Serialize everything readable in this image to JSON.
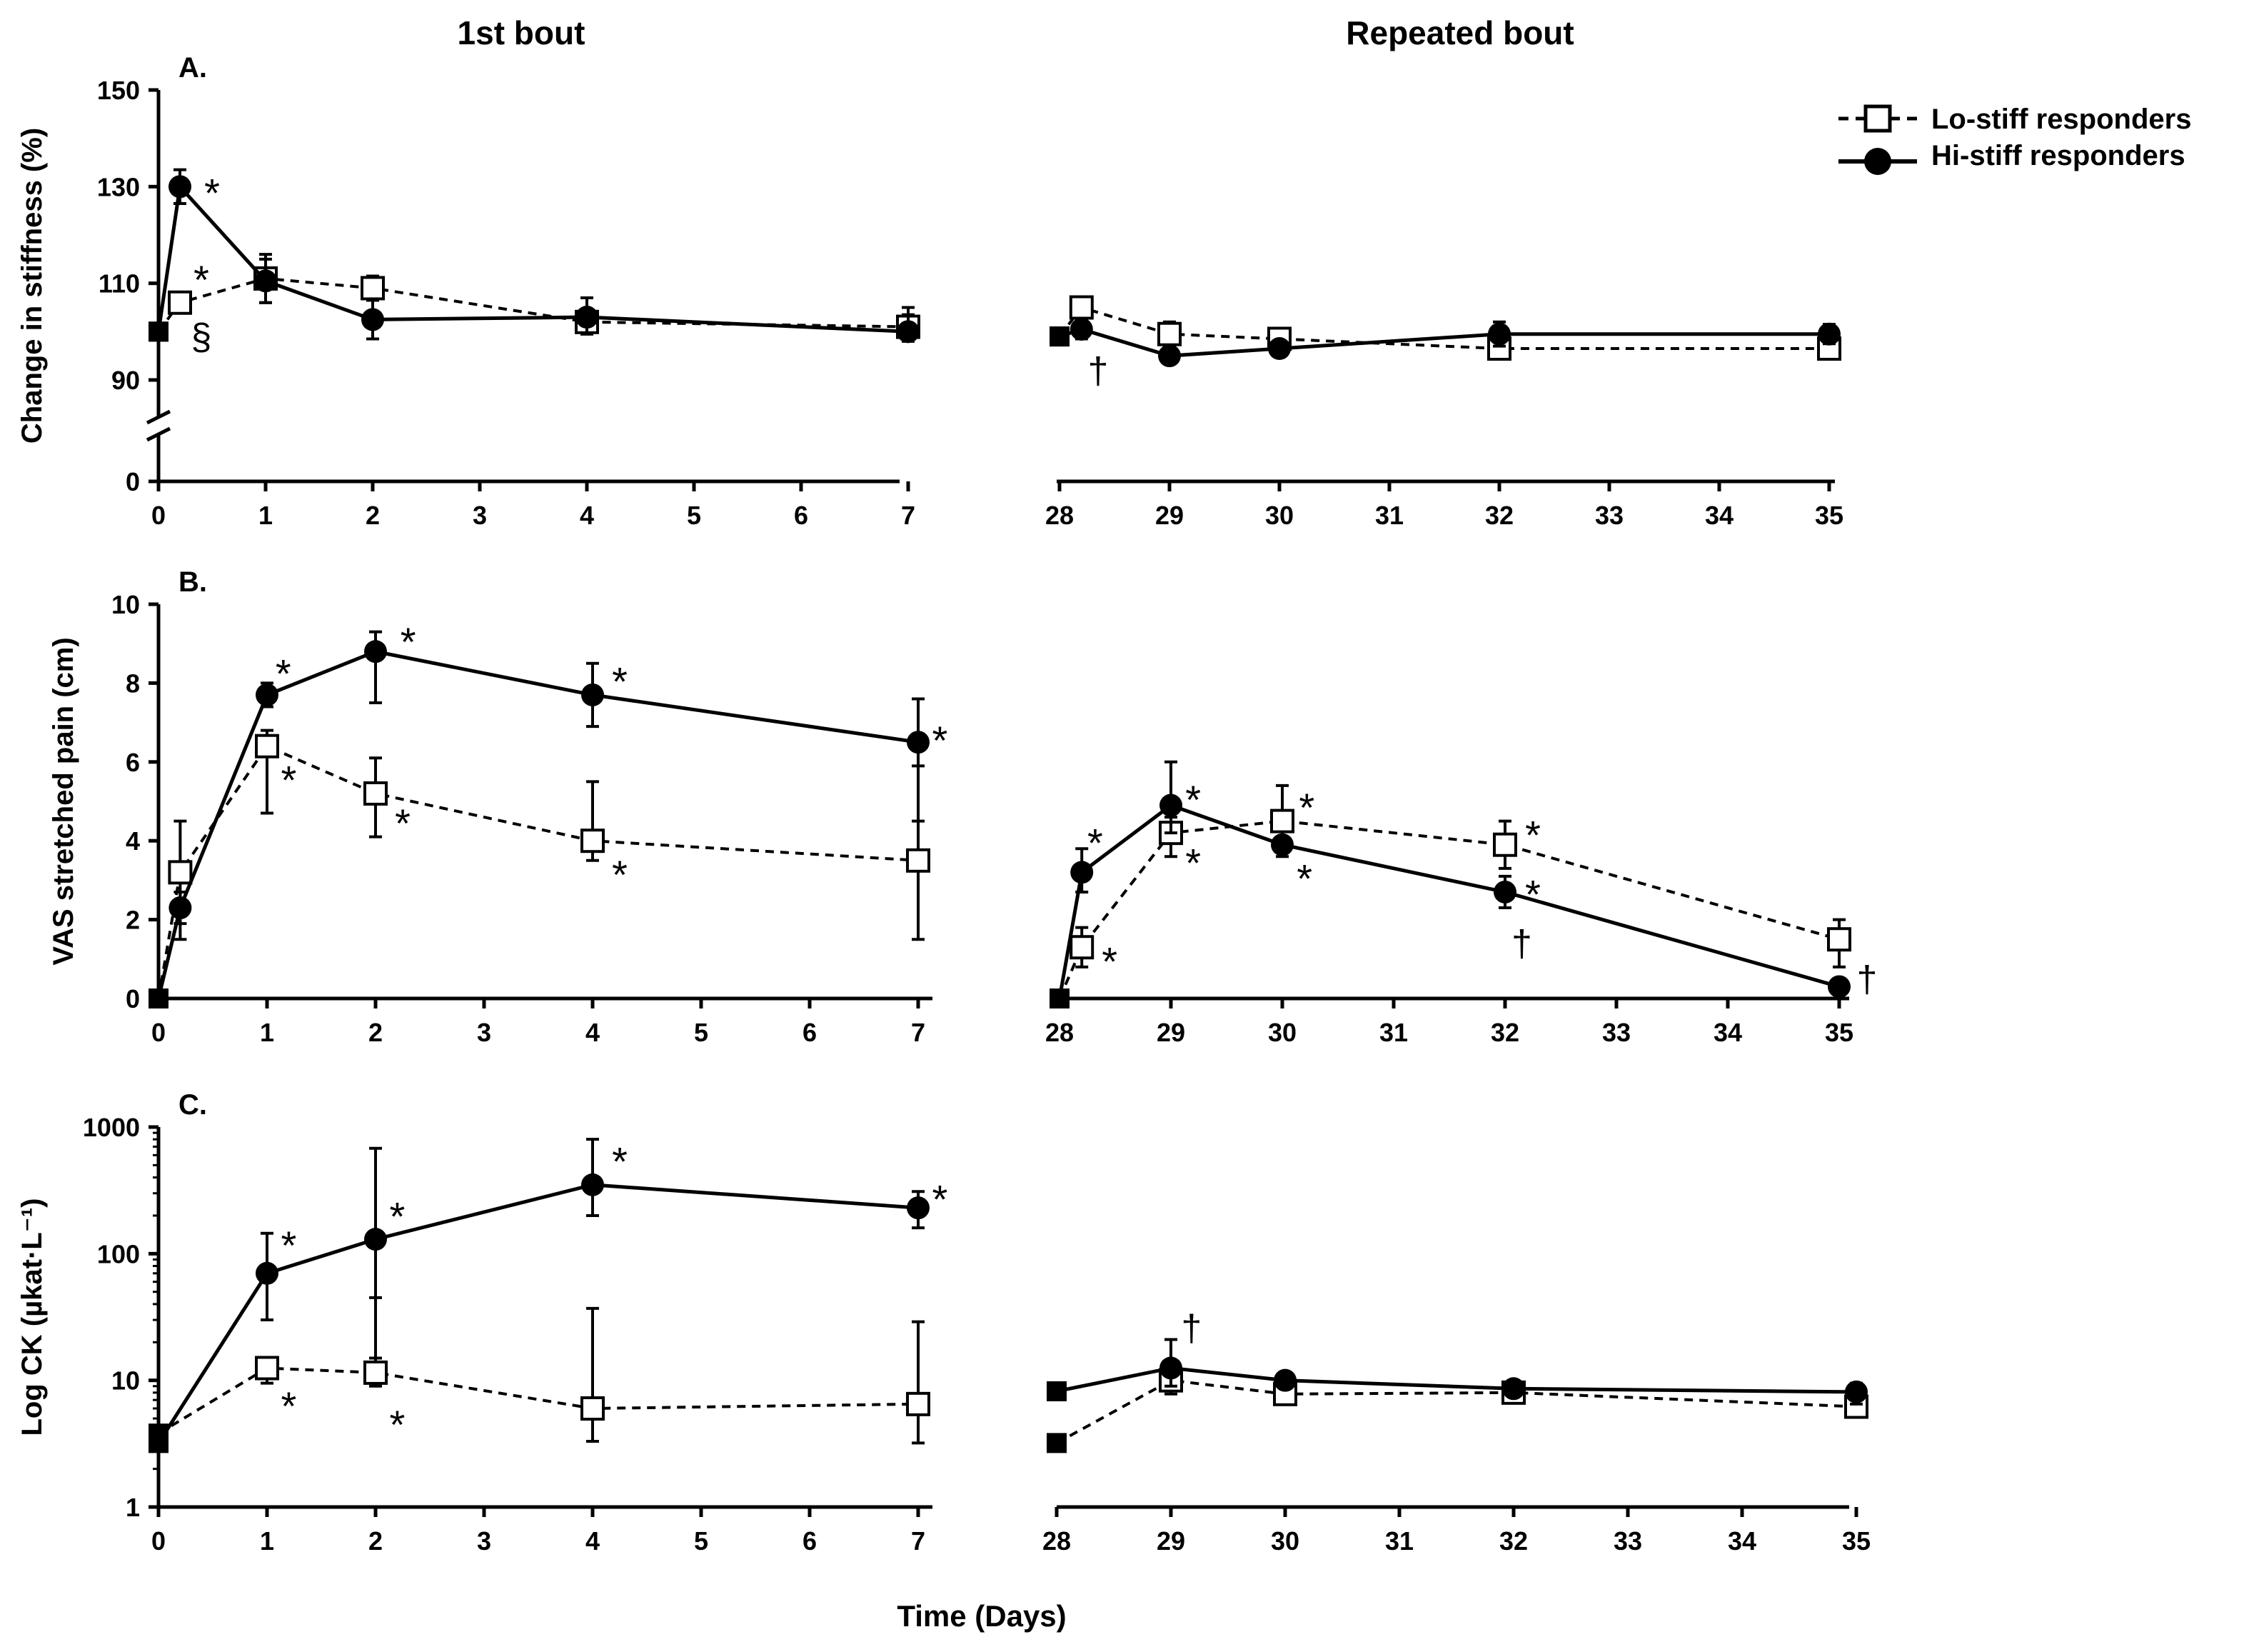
{
  "headers": {
    "first": "1st bout",
    "repeated": "Repeated bout"
  },
  "x_axis_label": "Time (Days)",
  "legend": {
    "lo": "Lo-stiff responders",
    "hi": "Hi-stiff responders"
  },
  "colors": {
    "line": "#000000",
    "annot": "#555555"
  },
  "first_ticks": [
    "0",
    "1",
    "2",
    "3",
    "4",
    "5",
    "6",
    "7"
  ],
  "repeat_ticks": [
    "28",
    "29",
    "30",
    "31",
    "32",
    "33",
    "34",
    "35"
  ],
  "chart_data": [
    {
      "id": "A",
      "type": "line",
      "panel_label": "A.",
      "ylabel": "Change in stiffness (%)",
      "scale": "linear",
      "ylim": [
        0,
        150
      ],
      "axis_break": true,
      "yticks": [
        0,
        90,
        110,
        130,
        150
      ],
      "ytick_labels": [
        "0",
        "90",
        "110",
        "130",
        "150"
      ],
      "series": [
        {
          "name": "Lo-stiff responders",
          "style": "dashed-open-square",
          "bout1": {
            "x": [
              0,
              0.2,
              1,
              2,
              4,
              7
            ],
            "y": [
              100,
              106,
              111,
              109,
              102,
              101
            ],
            "lo": [
              100,
              104.5,
              106,
              106.5,
              99.5,
              98.5
            ],
            "hi": [
              100,
              107.5,
              116,
              111.5,
              104.5,
              103.5
            ]
          },
          "bout2": {
            "x": [
              28,
              28.2,
              29,
              30,
              32,
              35
            ],
            "y": [
              99,
              105,
              99.5,
              98.5,
              96.5,
              96.5
            ],
            "lo": [
              99,
              103,
              97,
              97,
              94.5,
              94.5
            ],
            "hi": [
              99,
              107,
              102,
              100,
              98.5,
              98.5
            ]
          }
        },
        {
          "name": "Hi-stiff responders",
          "style": "solid-filled-circle",
          "bout1": {
            "x": [
              0,
              0.2,
              1,
              2,
              4,
              7
            ],
            "y": [
              100,
              130,
              110.5,
              102.5,
              103,
              100
            ],
            "lo": [
              100,
              126.5,
              106,
              98.5,
              99.5,
              98
            ],
            "hi": [
              100,
              133.5,
              115,
              106.5,
              107,
              105
            ]
          },
          "bout2": {
            "x": [
              28,
              28.2,
              29,
              30,
              32,
              35
            ],
            "y": [
              99,
              100.5,
              95,
              96.5,
              99.5,
              99.5
            ],
            "lo": [
              99,
              98.5,
              93.5,
              95,
              97,
              97.5
            ],
            "hi": [
              99,
              102.5,
              96.5,
              98,
              102,
              101.5
            ]
          }
        }
      ],
      "annotations": [
        {
          "text": "*",
          "x": 0.5,
          "y": 130
        },
        {
          "text": "*",
          "x": 0.4,
          "y": 112
        },
        {
          "text": "§",
          "x": 0.4,
          "y": 99
        },
        {
          "text": "†",
          "x": 28.35,
          "y": 92
        }
      ]
    },
    {
      "id": "B",
      "type": "line",
      "panel_label": "B.",
      "ylabel": "VAS stretched pain (cm)",
      "scale": "linear",
      "ylim": [
        0,
        10
      ],
      "yticks": [
        0,
        2,
        4,
        6,
        8,
        10
      ],
      "ytick_labels": [
        "0",
        "2",
        "4",
        "6",
        "8",
        "10"
      ],
      "series": [
        {
          "name": "Lo-stiff responders",
          "style": "dashed-open-square",
          "bout1": {
            "x": [
              0,
              0.2,
              1,
              2,
              4,
              7
            ],
            "y": [
              0,
              3.2,
              6.4,
              5.2,
              4.0,
              3.5
            ],
            "lo": [
              0,
              1.9,
              4.7,
              4.1,
              3.5,
              1.5
            ],
            "hi": [
              0,
              4.5,
              6.8,
              6.1,
              5.5,
              5.9
            ]
          },
          "bout2": {
            "x": [
              28,
              28.2,
              29,
              30,
              32,
              35
            ],
            "y": [
              0,
              1.3,
              4.2,
              4.5,
              3.9,
              1.5
            ],
            "lo": [
              0,
              0.8,
              3.6,
              3.6,
              3.3,
              0.8
            ],
            "hi": [
              0,
              1.8,
              4.6,
              5.4,
              4.5,
              2.0
            ]
          }
        },
        {
          "name": "Hi-stiff responders",
          "style": "solid-filled-circle",
          "bout1": {
            "x": [
              0,
              0.2,
              1,
              2,
              4,
              7
            ],
            "y": [
              0,
              2.3,
              7.7,
              8.8,
              7.7,
              6.5
            ],
            "lo": [
              0,
              1.5,
              7.4,
              7.5,
              6.9,
              4.5
            ],
            "hi": [
              0,
              2.7,
              8.0,
              9.3,
              8.5,
              7.6
            ]
          },
          "bout2": {
            "x": [
              28,
              28.2,
              29,
              30,
              32,
              35
            ],
            "y": [
              0,
              3.2,
              4.9,
              3.9,
              2.7,
              0.3
            ],
            "lo": [
              0,
              2.7,
              4.2,
              3.7,
              2.3,
              0.1
            ],
            "hi": [
              0,
              3.8,
              6.0,
              4.1,
              3.1,
              0.5
            ]
          }
        }
      ],
      "annotations": [
        {
          "text": "*",
          "x": 1.15,
          "y": 8.4
        },
        {
          "text": "*",
          "x": 2.3,
          "y": 9.2
        },
        {
          "text": "*",
          "x": 4.25,
          "y": 8.2
        },
        {
          "text": "*",
          "x": 7.2,
          "y": 6.7
        },
        {
          "text": "*",
          "x": 1.2,
          "y": 5.7
        },
        {
          "text": "*",
          "x": 2.25,
          "y": 4.6
        },
        {
          "text": "*",
          "x": 4.25,
          "y": 3.3
        },
        {
          "text": "*",
          "x": 28.32,
          "y": 4.1
        },
        {
          "text": "*",
          "x": 29.2,
          "y": 5.2
        },
        {
          "text": "*",
          "x": 29.2,
          "y": 3.6
        },
        {
          "text": "*",
          "x": 30.22,
          "y": 5.0
        },
        {
          "text": "*",
          "x": 30.2,
          "y": 3.2
        },
        {
          "text": "*",
          "x": 32.25,
          "y": 4.3
        },
        {
          "text": "*",
          "x": 32.25,
          "y": 2.8
        },
        {
          "text": "*",
          "x": 28.45,
          "y": 1.1
        },
        {
          "text": "†",
          "x": 32.15,
          "y": 1.4
        },
        {
          "text": "†",
          "x": 35.25,
          "y": 0.5
        }
      ]
    },
    {
      "id": "C",
      "type": "line",
      "panel_label": "C.",
      "ylabel": "Log  CK (µkat·L⁻¹)",
      "scale": "log",
      "ylim": [
        1,
        1000
      ],
      "yticks": [
        1,
        10,
        100,
        1000
      ],
      "ytick_labels": [
        "1",
        "10",
        "100",
        "1000"
      ],
      "series": [
        {
          "name": "Lo-stiff responders",
          "style": "dashed-open-square",
          "bout1": {
            "x": [
              0,
              1,
              2,
              4,
              7
            ],
            "y": [
              3.8,
              12.5,
              11.5,
              6.0,
              6.5
            ],
            "lo": [
              3.8,
              9.5,
              9.0,
              3.3,
              3.2
            ],
            "hi": [
              3.8,
              15.0,
              45.0,
              37.0,
              29.0
            ]
          },
          "bout2": {
            "x": [
              28,
              29,
              30,
              32,
              35
            ],
            "y": [
              3.2,
              10.0,
              7.8,
              8.0,
              6.2
            ],
            "lo": [
              3.2,
              7.8,
              6.8,
              7.0,
              5.5
            ],
            "hi": [
              3.2,
              11.5,
              9.0,
              9.0,
              7.2
            ]
          }
        },
        {
          "name": "Hi-stiff responders",
          "style": "solid-filled-circle",
          "bout1": {
            "x": [
              0,
              1,
              2,
              4,
              7
            ],
            "y": [
              3.2,
              70,
              130,
              350,
              230
            ],
            "lo": [
              3.2,
              30,
              15,
              200,
              160
            ],
            "hi": [
              3.2,
              145,
              680,
              800,
              310
            ]
          },
          "bout2": {
            "x": [
              28,
              29,
              30,
              32,
              35
            ],
            "y": [
              8.2,
              12.5,
              10.0,
              8.6,
              8.1
            ],
            "lo": [
              8.2,
              9.0,
              8.6,
              8.0,
              6.5
            ],
            "hi": [
              8.2,
              21.0,
              11.5,
              9.0,
              9.5
            ]
          }
        }
      ],
      "annotations": [
        {
          "text": "*",
          "x": 1.2,
          "y": 130
        },
        {
          "text": "*",
          "x": 2.2,
          "y": 220
        },
        {
          "text": "*",
          "x": 4.25,
          "y": 600
        },
        {
          "text": "*",
          "x": 7.2,
          "y": 300
        },
        {
          "text": "*",
          "x": 1.2,
          "y": 7
        },
        {
          "text": "*",
          "x": 2.2,
          "y": 5
        },
        {
          "text": "†",
          "x": 29.18,
          "y": 26
        }
      ]
    }
  ]
}
